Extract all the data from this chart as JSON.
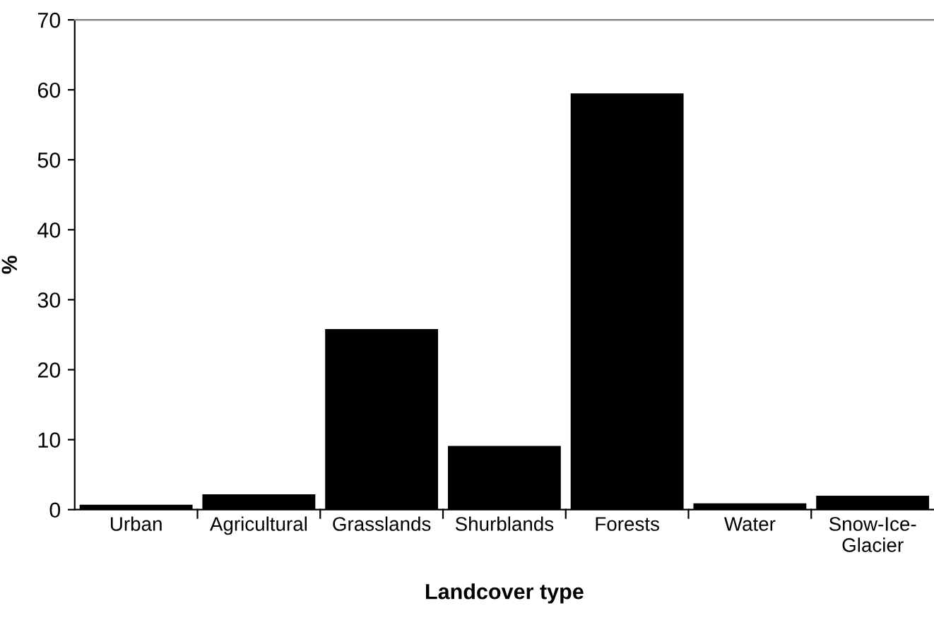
{
  "chart_data": {
    "type": "bar",
    "xlabel": "Landcover type",
    "ylabel": "%",
    "categories": [
      "Urban",
      "Agricultural",
      "Grasslands",
      "Shurblands",
      "Forests",
      "Water",
      "Snow-Ice-\nGlacier"
    ],
    "values": [
      0.7,
      2.2,
      25.8,
      9.1,
      59.5,
      0.9,
      2.0
    ],
    "color": "#000000",
    "ylim": [
      0,
      70
    ],
    "yticks": [
      0,
      10,
      20,
      30,
      40,
      50,
      60,
      70
    ],
    "grid": false
  }
}
